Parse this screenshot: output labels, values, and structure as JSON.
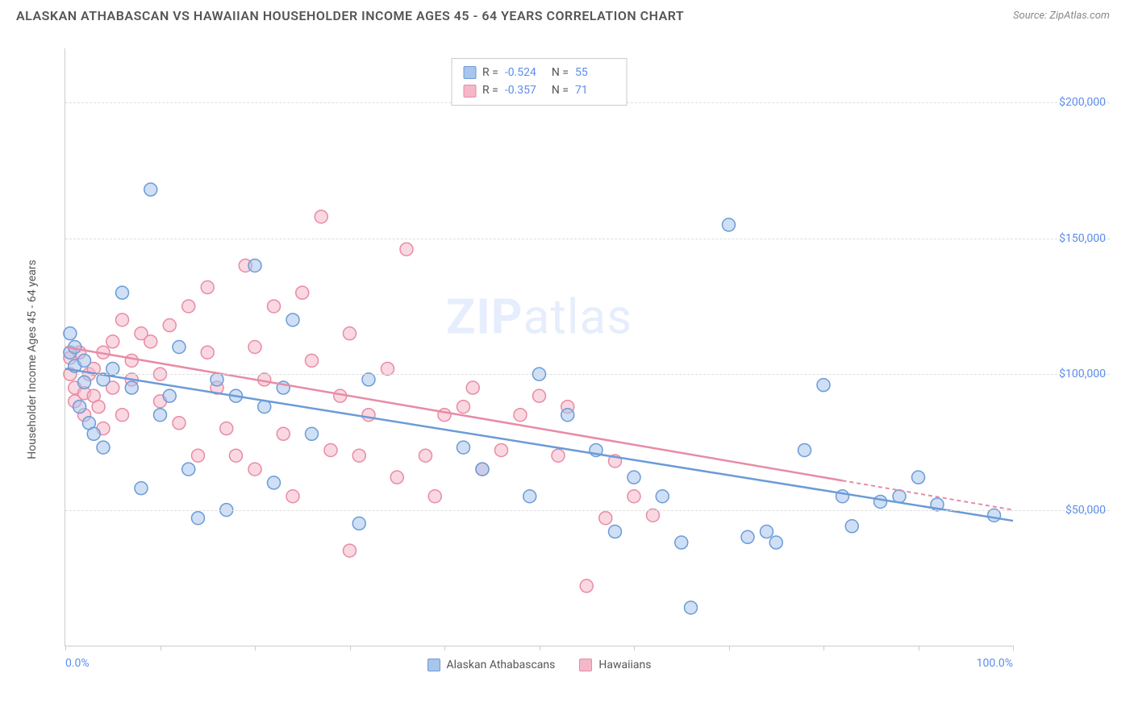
{
  "title": "ALASKAN ATHABASCAN VS HAWAIIAN HOUSEHOLDER INCOME AGES 45 - 64 YEARS CORRELATION CHART",
  "source": "Source: ZipAtlas.com",
  "watermark_bold": "ZIP",
  "watermark_rest": "atlas",
  "chart": {
    "type": "scatter",
    "y_axis_label": "Householder Income Ages 45 - 64 years",
    "xlim": [
      0,
      100
    ],
    "ylim": [
      0,
      220000
    ],
    "x_ticks": [
      0,
      10,
      20,
      30,
      40,
      50,
      60,
      70,
      80,
      90,
      100
    ],
    "x_tick_labels": {
      "0": "0.0%",
      "100": "100.0%"
    },
    "y_gridlines": [
      50000,
      100000,
      150000,
      200000
    ],
    "y_tick_labels": {
      "50000": "$50,000",
      "100000": "$100,000",
      "150000": "$150,000",
      "200000": "$200,000"
    },
    "background_color": "#ffffff",
    "grid_color": "#dddddd",
    "marker_radius": 8,
    "marker_opacity": 0.55,
    "series": [
      {
        "name": "Alaskan Athabascans",
        "color_fill": "#a8c5ec",
        "color_stroke": "#6b9bd8",
        "R": "-0.524",
        "N": "55",
        "trend": {
          "x1": 0,
          "y1": 102000,
          "x2": 100,
          "y2": 46000,
          "dash_from_x": null
        },
        "points": [
          [
            0.5,
            108000
          ],
          [
            0.5,
            115000
          ],
          [
            1,
            103000
          ],
          [
            1,
            110000
          ],
          [
            1.5,
            88000
          ],
          [
            2,
            97000
          ],
          [
            2,
            105000
          ],
          [
            2.5,
            82000
          ],
          [
            3,
            78000
          ],
          [
            4,
            98000
          ],
          [
            4,
            73000
          ],
          [
            5,
            102000
          ],
          [
            6,
            130000
          ],
          [
            7,
            95000
          ],
          [
            8,
            58000
          ],
          [
            9,
            168000
          ],
          [
            10,
            85000
          ],
          [
            11,
            92000
          ],
          [
            12,
            110000
          ],
          [
            13,
            65000
          ],
          [
            14,
            47000
          ],
          [
            16,
            98000
          ],
          [
            17,
            50000
          ],
          [
            18,
            92000
          ],
          [
            20,
            140000
          ],
          [
            21,
            88000
          ],
          [
            22,
            60000
          ],
          [
            23,
            95000
          ],
          [
            24,
            120000
          ],
          [
            26,
            78000
          ],
          [
            31,
            45000
          ],
          [
            32,
            98000
          ],
          [
            42,
            73000
          ],
          [
            44,
            65000
          ],
          [
            49,
            55000
          ],
          [
            50,
            100000
          ],
          [
            53,
            85000
          ],
          [
            56,
            72000
          ],
          [
            58,
            42000
          ],
          [
            60,
            62000
          ],
          [
            63,
            55000
          ],
          [
            65,
            38000
          ],
          [
            66,
            14000
          ],
          [
            70,
            155000
          ],
          [
            72,
            40000
          ],
          [
            74,
            42000
          ],
          [
            75,
            38000
          ],
          [
            78,
            72000
          ],
          [
            80,
            96000
          ],
          [
            82,
            55000
          ],
          [
            83,
            44000
          ],
          [
            86,
            53000
          ],
          [
            88,
            55000
          ],
          [
            90,
            62000
          ],
          [
            92,
            52000
          ],
          [
            98,
            48000
          ]
        ]
      },
      {
        "name": "Hawaiians",
        "color_fill": "#f5b8c8",
        "color_stroke": "#e88ba5",
        "R": "-0.357",
        "N": "71",
        "trend": {
          "x1": 0,
          "y1": 110000,
          "x2": 100,
          "y2": 50000,
          "dash_from_x": 82
        },
        "points": [
          [
            0.5,
            100000
          ],
          [
            0.5,
            106000
          ],
          [
            1,
            90000
          ],
          [
            1,
            95000
          ],
          [
            1.5,
            108000
          ],
          [
            2,
            93000
          ],
          [
            2,
            85000
          ],
          [
            2.5,
            100000
          ],
          [
            3,
            92000
          ],
          [
            3,
            102000
          ],
          [
            3.5,
            88000
          ],
          [
            4,
            80000
          ],
          [
            4,
            108000
          ],
          [
            5,
            95000
          ],
          [
            5,
            112000
          ],
          [
            6,
            85000
          ],
          [
            6,
            120000
          ],
          [
            7,
            105000
          ],
          [
            7,
            98000
          ],
          [
            8,
            115000
          ],
          [
            9,
            112000
          ],
          [
            10,
            100000
          ],
          [
            10,
            90000
          ],
          [
            11,
            118000
          ],
          [
            12,
            82000
          ],
          [
            13,
            125000
          ],
          [
            14,
            70000
          ],
          [
            15,
            108000
          ],
          [
            15,
            132000
          ],
          [
            16,
            95000
          ],
          [
            17,
            80000
          ],
          [
            18,
            70000
          ],
          [
            19,
            140000
          ],
          [
            20,
            110000
          ],
          [
            20,
            65000
          ],
          [
            21,
            98000
          ],
          [
            22,
            125000
          ],
          [
            23,
            78000
          ],
          [
            24,
            55000
          ],
          [
            25,
            130000
          ],
          [
            26,
            105000
          ],
          [
            27,
            158000
          ],
          [
            28,
            72000
          ],
          [
            29,
            92000
          ],
          [
            30,
            115000
          ],
          [
            30,
            35000
          ],
          [
            31,
            70000
          ],
          [
            32,
            85000
          ],
          [
            34,
            102000
          ],
          [
            35,
            62000
          ],
          [
            36,
            146000
          ],
          [
            38,
            70000
          ],
          [
            39,
            55000
          ],
          [
            40,
            85000
          ],
          [
            42,
            88000
          ],
          [
            43,
            95000
          ],
          [
            44,
            65000
          ],
          [
            46,
            72000
          ],
          [
            48,
            85000
          ],
          [
            50,
            92000
          ],
          [
            52,
            70000
          ],
          [
            53,
            88000
          ],
          [
            55,
            22000
          ],
          [
            57,
            47000
          ],
          [
            58,
            68000
          ],
          [
            60,
            55000
          ],
          [
            62,
            48000
          ]
        ]
      }
    ],
    "bottom_legend": [
      "Alaskan Athabascans",
      "Hawaiians"
    ]
  }
}
